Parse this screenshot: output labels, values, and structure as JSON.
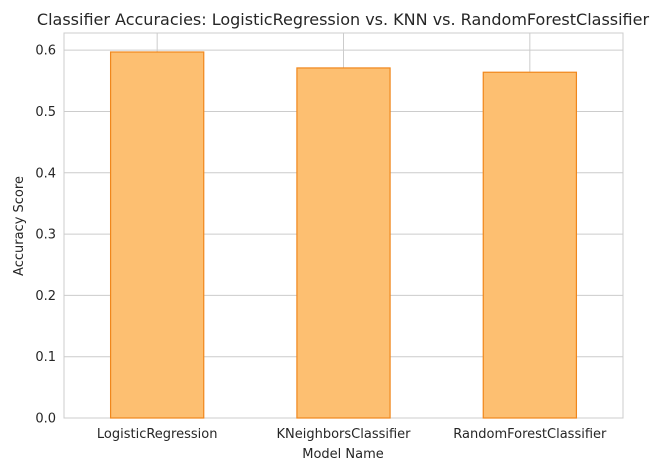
{
  "chart_data": {
    "type": "bar",
    "title": "Classifier Accuracies: LogisticRegression vs. KNN vs. RandomForestClassifier",
    "xlabel": "Model Name",
    "ylabel": "Accuracy Score",
    "categories": [
      "LogisticRegression",
      "KNeighborsClassifier",
      "RandomForestClassifier"
    ],
    "values": [
      0.597,
      0.571,
      0.564
    ],
    "ylim": [
      0,
      0.628
    ],
    "yticks": [
      0.0,
      0.1,
      0.2,
      0.3,
      0.4,
      0.5,
      0.6
    ],
    "ytick_labels": [
      "0.0",
      "0.1",
      "0.2",
      "0.3",
      "0.4",
      "0.5",
      "0.6"
    ],
    "grid": true,
    "bar_fill_color": "#fdbf71",
    "bar_edge_color": "#f0871c",
    "grid_color": "#cccccc"
  }
}
